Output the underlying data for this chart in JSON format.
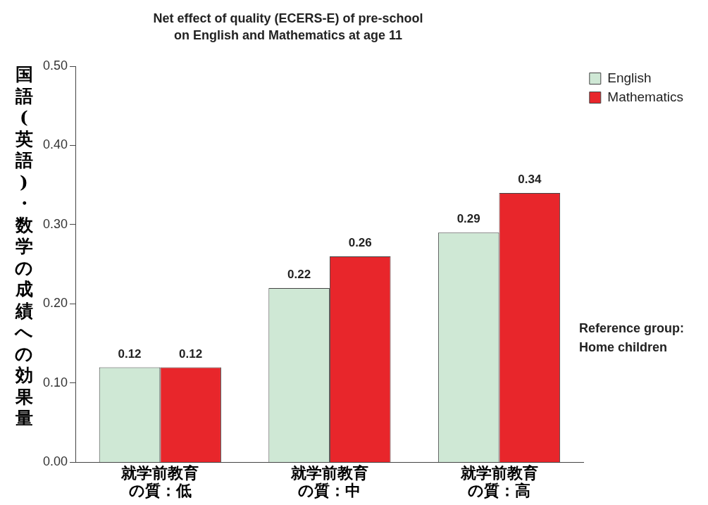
{
  "chart_data": {
    "type": "bar",
    "title": [
      "Net effect of quality (ECERS-E) of pre-school",
      "on English and Mathematics at age 11"
    ],
    "ylabel": "国語(英語)・数学の成績への効果量",
    "categories": [
      "就学前教育の質：低",
      "就学前教育の質：中",
      "就学前教育の質：高"
    ],
    "series": [
      {
        "name": "English",
        "color": "#cfe8d5",
        "values": [
          0.12,
          0.22,
          0.29
        ]
      },
      {
        "name": "Mathematics",
        "color": "#e8262b",
        "values": [
          0.12,
          0.26,
          0.34
        ]
      }
    ],
    "ylim": [
      0,
      0.5
    ],
    "yticks": [
      {
        "value": 0,
        "label": "0.00"
      },
      {
        "value": 0.1,
        "label": "0.10"
      },
      {
        "value": 0.2,
        "label": "0.20"
      },
      {
        "value": 0.3,
        "label": "0.30"
      },
      {
        "value": 0.4,
        "label": "0.40"
      },
      {
        "value": 0.5,
        "label": "0.50"
      }
    ],
    "grid": false,
    "legend": "right",
    "data_labels": true,
    "annotations": [
      "Reference group:\nHome children"
    ]
  }
}
